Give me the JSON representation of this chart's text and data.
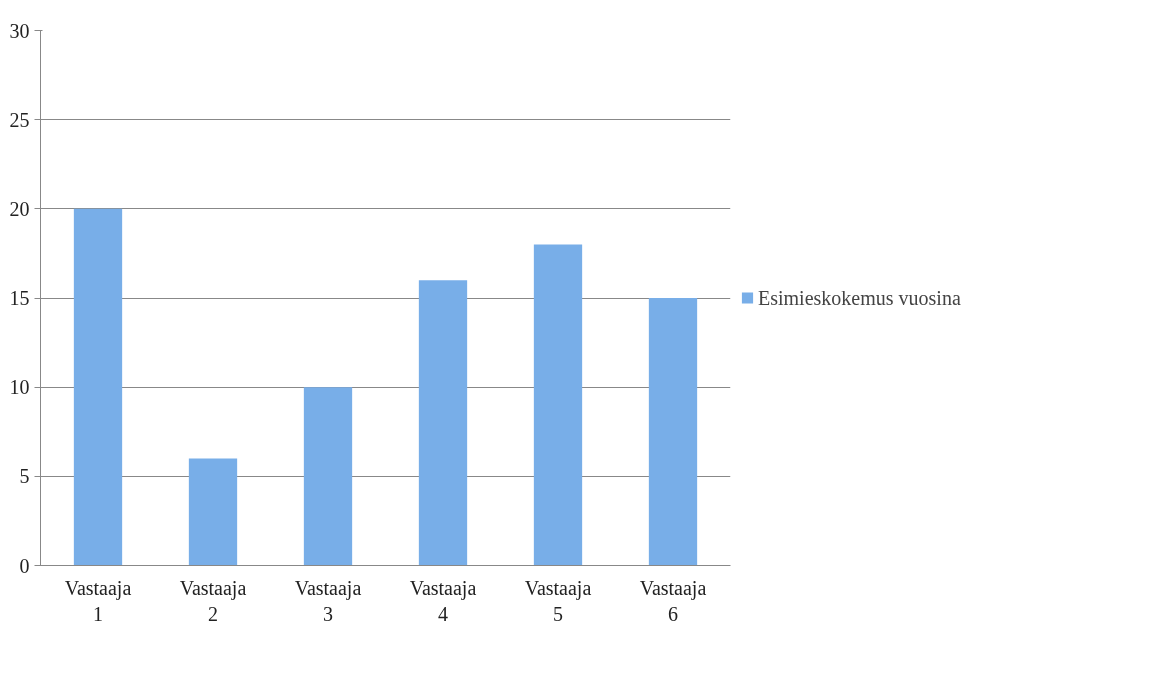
{
  "chart_data": {
    "type": "bar",
    "categories": [
      "Vastaaja 1",
      "Vastaaja 2",
      "Vastaaja 3",
      "Vastaaja 4",
      "Vastaaja 5",
      "Vastaaja 6"
    ],
    "series": [
      {
        "name": "Esimieskokemus vuosina",
        "color": "#78aee8",
        "values": [
          20,
          6,
          10,
          16,
          18,
          15
        ]
      }
    ],
    "ylim": [
      0,
      30
    ],
    "yticks": [
      0,
      5,
      10,
      15,
      20,
      25,
      30
    ],
    "grid": "y",
    "legend": "right"
  }
}
